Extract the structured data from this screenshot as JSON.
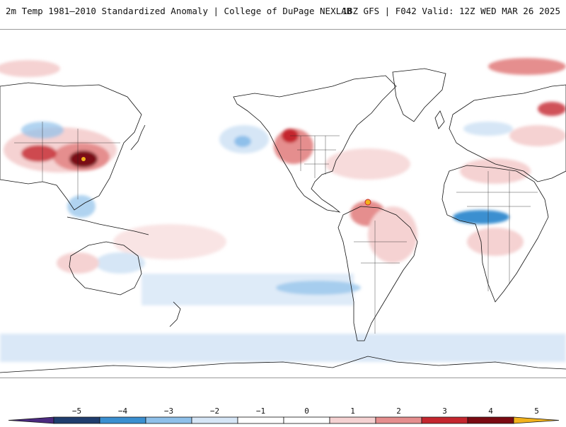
{
  "header": {
    "title_left": "2m Temp 1981–2010 Standardized Anomaly | College of DuPage NEXLAB",
    "title_right": "18Z GFS | F042 Valid: 12Z WED MAR 26 2025"
  },
  "map": {
    "projection": "equirectangular",
    "variable": "2m temperature standardized anomaly",
    "notable_features": [
      {
        "region": "east-china",
        "anomaly": "strong-positive"
      },
      {
        "region": "western-north-america",
        "anomaly": "positive"
      },
      {
        "region": "northern-south-america",
        "anomaly": "strong-positive"
      },
      {
        "region": "gulf-of-guinea",
        "anomaly": "negative"
      },
      {
        "region": "southern-ocean",
        "anomaly": "weak-negative"
      }
    ]
  },
  "colorbar": {
    "ticks": [
      "−5",
      "−4",
      "−3",
      "−2",
      "−1",
      "0",
      "1",
      "2",
      "3",
      "4",
      "5"
    ],
    "segments": [
      {
        "color": "#4b2a7f"
      },
      {
        "color": "#1f3d6e"
      },
      {
        "color": "#3a8fd0"
      },
      {
        "color": "#8fc0ea"
      },
      {
        "color": "#d6e6f6"
      },
      {
        "color": "#ffffff"
      },
      {
        "color": "#ffffff"
      },
      {
        "color": "#f5d2d2"
      },
      {
        "color": "#e58e8e"
      },
      {
        "color": "#c4262e"
      },
      {
        "color": "#7a0a12"
      },
      {
        "color": "#f2b21c"
      }
    ]
  }
}
